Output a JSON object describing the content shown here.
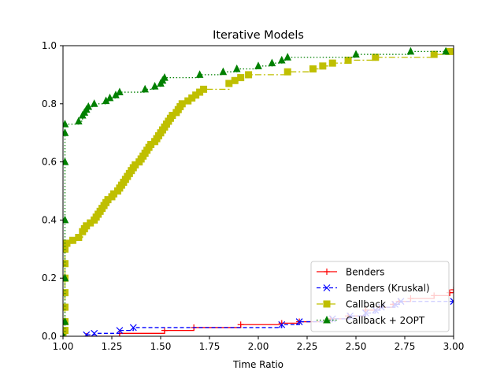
{
  "chart_data": {
    "type": "line",
    "title": "Iterative Models",
    "xlabel": "Time Ratio",
    "ylabel": "",
    "xlim": [
      1.0,
      3.0
    ],
    "ylim": [
      0.0,
      1.0
    ],
    "xticks": [
      "1.00",
      "1.25",
      "1.50",
      "1.75",
      "2.00",
      "2.25",
      "2.50",
      "2.75",
      "3.00"
    ],
    "xtick_values": [
      1.0,
      1.25,
      1.5,
      1.75,
      2.0,
      2.25,
      2.5,
      2.75,
      3.0
    ],
    "yticks": [
      "0.0",
      "0.2",
      "0.4",
      "0.6",
      "0.8",
      "1.0"
    ],
    "ytick_values": [
      0.0,
      0.2,
      0.4,
      0.6,
      0.8,
      1.0
    ],
    "grid": false,
    "legend_position": "bottom-right",
    "series": [
      {
        "name": "Benders",
        "color": "#ff0000",
        "line_style": "solid",
        "marker": "plus",
        "step": true,
        "points": [
          [
            1.12,
            0.0
          ],
          [
            1.29,
            0.01
          ],
          [
            1.52,
            0.02
          ],
          [
            1.67,
            0.03
          ],
          [
            1.91,
            0.04
          ],
          [
            2.12,
            0.045
          ],
          [
            2.21,
            0.05
          ],
          [
            2.37,
            0.06
          ],
          [
            2.46,
            0.07
          ],
          [
            2.55,
            0.09
          ],
          [
            2.62,
            0.1
          ],
          [
            2.69,
            0.11
          ],
          [
            2.72,
            0.12
          ],
          [
            2.78,
            0.13
          ],
          [
            2.9,
            0.14
          ],
          [
            2.98,
            0.15
          ],
          [
            3.0,
            0.16
          ]
        ]
      },
      {
        "name": "Benders (Kruskal)",
        "color": "#0000ff",
        "line_style": "dashed",
        "marker": "x",
        "step": true,
        "points": [
          [
            1.12,
            0.005
          ],
          [
            1.16,
            0.01
          ],
          [
            1.29,
            0.02
          ],
          [
            1.36,
            0.03
          ],
          [
            2.12,
            0.04
          ],
          [
            2.21,
            0.05
          ],
          [
            2.38,
            0.06
          ],
          [
            2.47,
            0.07
          ],
          [
            2.55,
            0.08
          ],
          [
            2.6,
            0.09
          ],
          [
            2.63,
            0.1
          ],
          [
            2.7,
            0.11
          ],
          [
            2.73,
            0.12
          ],
          [
            3.0,
            0.12
          ]
        ]
      },
      {
        "name": "Callback",
        "color": "#bfbf00",
        "line_style": "dashdot",
        "marker": "square",
        "step": true,
        "points": [
          [
            1.0,
            0.0
          ],
          [
            1.01,
            0.02
          ],
          [
            1.01,
            0.05
          ],
          [
            1.01,
            0.1
          ],
          [
            1.01,
            0.15
          ],
          [
            1.01,
            0.2
          ],
          [
            1.01,
            0.25
          ],
          [
            1.01,
            0.3
          ],
          [
            1.02,
            0.32
          ],
          [
            1.05,
            0.33
          ],
          [
            1.08,
            0.34
          ],
          [
            1.1,
            0.36
          ],
          [
            1.11,
            0.37
          ],
          [
            1.12,
            0.38
          ],
          [
            1.14,
            0.39
          ],
          [
            1.16,
            0.4
          ],
          [
            1.17,
            0.41
          ],
          [
            1.18,
            0.42
          ],
          [
            1.19,
            0.43
          ],
          [
            1.2,
            0.44
          ],
          [
            1.21,
            0.45
          ],
          [
            1.22,
            0.46
          ],
          [
            1.23,
            0.47
          ],
          [
            1.25,
            0.48
          ],
          [
            1.26,
            0.49
          ],
          [
            1.28,
            0.5
          ],
          [
            1.29,
            0.51
          ],
          [
            1.3,
            0.52
          ],
          [
            1.31,
            0.53
          ],
          [
            1.32,
            0.54
          ],
          [
            1.33,
            0.55
          ],
          [
            1.34,
            0.56
          ],
          [
            1.35,
            0.57
          ],
          [
            1.36,
            0.58
          ],
          [
            1.37,
            0.59
          ],
          [
            1.39,
            0.6
          ],
          [
            1.4,
            0.61
          ],
          [
            1.41,
            0.62
          ],
          [
            1.42,
            0.63
          ],
          [
            1.43,
            0.64
          ],
          [
            1.44,
            0.65
          ],
          [
            1.45,
            0.66
          ],
          [
            1.47,
            0.67
          ],
          [
            1.48,
            0.68
          ],
          [
            1.49,
            0.69
          ],
          [
            1.5,
            0.7
          ],
          [
            1.51,
            0.71
          ],
          [
            1.52,
            0.72
          ],
          [
            1.53,
            0.73
          ],
          [
            1.54,
            0.74
          ],
          [
            1.55,
            0.75
          ],
          [
            1.56,
            0.76
          ],
          [
            1.58,
            0.77
          ],
          [
            1.59,
            0.78
          ],
          [
            1.6,
            0.79
          ],
          [
            1.61,
            0.8
          ],
          [
            1.64,
            0.81
          ],
          [
            1.66,
            0.82
          ],
          [
            1.68,
            0.83
          ],
          [
            1.7,
            0.84
          ],
          [
            1.72,
            0.85
          ],
          [
            1.85,
            0.87
          ],
          [
            1.88,
            0.88
          ],
          [
            1.91,
            0.89
          ],
          [
            1.95,
            0.9
          ],
          [
            2.15,
            0.91
          ],
          [
            2.28,
            0.92
          ],
          [
            2.33,
            0.93
          ],
          [
            2.38,
            0.94
          ],
          [
            2.46,
            0.95
          ],
          [
            2.6,
            0.96
          ],
          [
            2.9,
            0.97
          ],
          [
            2.98,
            0.98
          ]
        ]
      },
      {
        "name": "Callback + 2OPT",
        "color": "#008000",
        "line_style": "dotted",
        "marker": "triangle",
        "step": true,
        "points": [
          [
            1.0,
            0.0
          ],
          [
            1.01,
            0.05
          ],
          [
            1.01,
            0.2
          ],
          [
            1.01,
            0.4
          ],
          [
            1.01,
            0.6
          ],
          [
            1.01,
            0.7
          ],
          [
            1.01,
            0.73
          ],
          [
            1.08,
            0.74
          ],
          [
            1.1,
            0.76
          ],
          [
            1.11,
            0.77
          ],
          [
            1.12,
            0.78
          ],
          [
            1.13,
            0.79
          ],
          [
            1.16,
            0.8
          ],
          [
            1.22,
            0.81
          ],
          [
            1.24,
            0.82
          ],
          [
            1.27,
            0.83
          ],
          [
            1.29,
            0.84
          ],
          [
            1.42,
            0.85
          ],
          [
            1.47,
            0.86
          ],
          [
            1.5,
            0.87
          ],
          [
            1.51,
            0.88
          ],
          [
            1.52,
            0.89
          ],
          [
            1.7,
            0.9
          ],
          [
            1.82,
            0.91
          ],
          [
            1.89,
            0.92
          ],
          [
            2.0,
            0.93
          ],
          [
            2.07,
            0.94
          ],
          [
            2.12,
            0.95
          ],
          [
            2.15,
            0.96
          ],
          [
            2.5,
            0.97
          ],
          [
            2.78,
            0.98
          ],
          [
            2.96,
            0.98
          ]
        ]
      }
    ]
  }
}
